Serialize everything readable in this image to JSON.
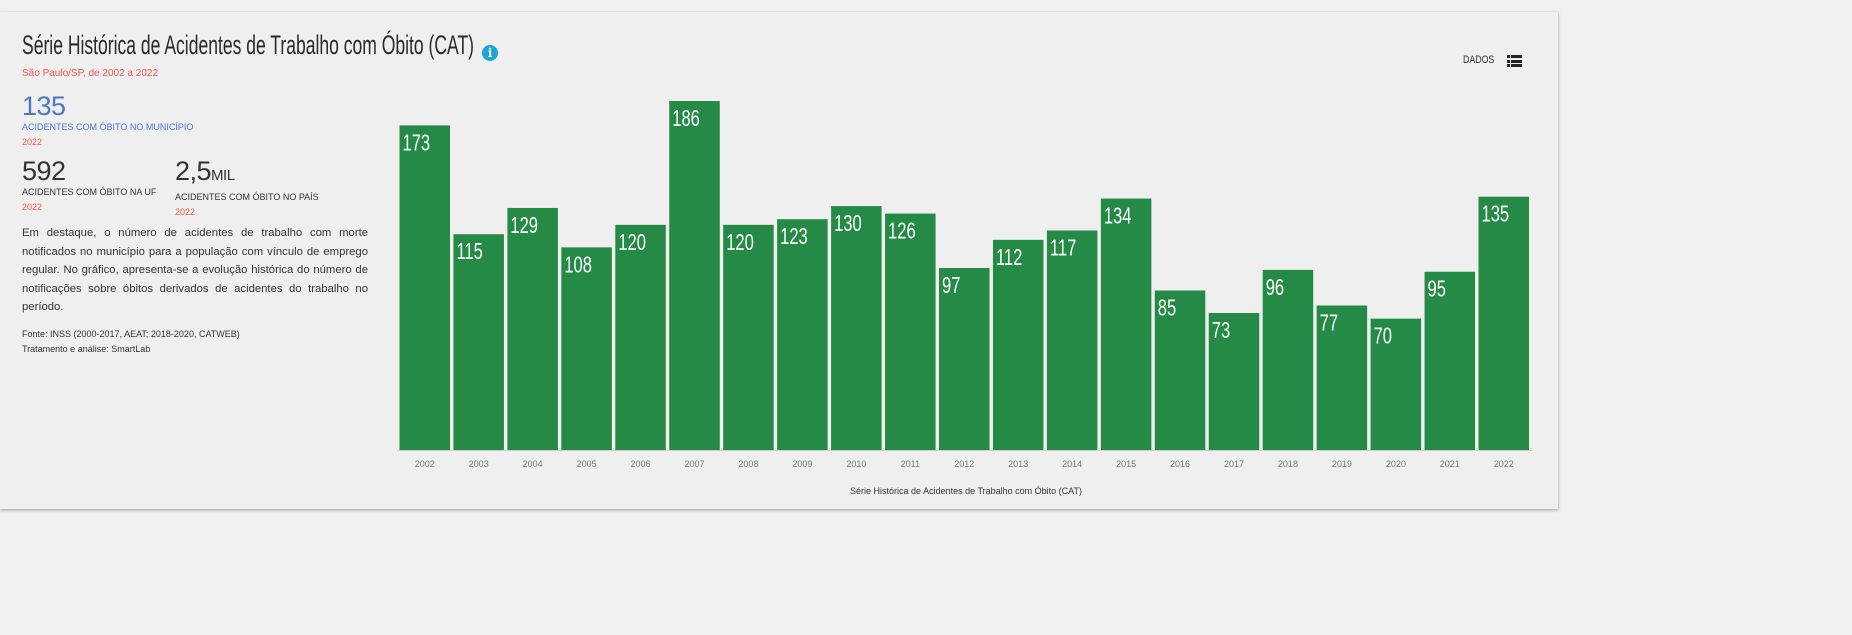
{
  "header": {
    "title": "Série Histórica de Acidentes de Trabalho com Óbito (CAT)",
    "info_icon": "info-icon",
    "subtitle": "São Paulo/SP, de 2002 a 2022",
    "data_button": "DADOS",
    "list_icon": "list-icon"
  },
  "stats": {
    "municipio": {
      "value": "135",
      "label": "ACIDENTES COM ÓBITO NO MUNICÍPIO",
      "year": "2022"
    },
    "uf": {
      "value": "592",
      "label": "ACIDENTES COM ÓBITO NA UF",
      "year": "2022"
    },
    "pais": {
      "value": "2,5",
      "unit": "MIL",
      "label": "ACIDENTES COM ÓBITO NO PAÍS",
      "year": "2022"
    }
  },
  "description": "Em destaque, o número de acidentes de trabalho com morte notificados no município para a população com vínculo de emprego regular. No gráfico, apresenta-se a evolução histórica do número de notificações sobre óbitos derivados de acidentes do trabalho no período.",
  "source": "Fonte: INSS (2000-2017, AEAT; 2018-2020, CATWEB)",
  "analysis": "Tratamento e análise: SmartLab",
  "colors": {
    "bar": "#248a45",
    "accent": "#f0574a",
    "blue": "#4a78c4"
  },
  "chart_data": {
    "type": "bar",
    "title": "",
    "xlabel": "Série Histórica de Acidentes de Trabalho com Óbito (CAT)",
    "ylabel": "",
    "categories": [
      "2002",
      "2003",
      "2004",
      "2005",
      "2006",
      "2007",
      "2008",
      "2009",
      "2010",
      "2011",
      "2012",
      "2013",
      "2014",
      "2015",
      "2016",
      "2017",
      "2018",
      "2019",
      "2020",
      "2021",
      "2022"
    ],
    "values": [
      173,
      115,
      129,
      108,
      120,
      186,
      120,
      123,
      130,
      126,
      97,
      112,
      117,
      134,
      85,
      73,
      96,
      77,
      70,
      95,
      135
    ],
    "ylim": [
      0,
      186
    ],
    "grid": false,
    "data_labels": true
  }
}
